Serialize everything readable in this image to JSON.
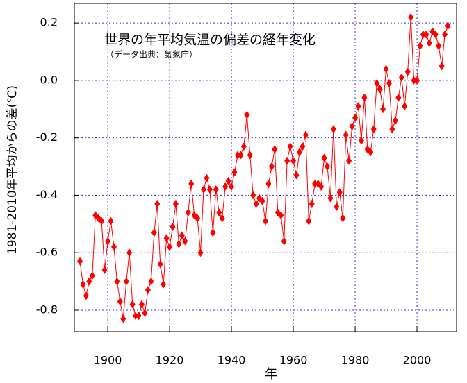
{
  "chart_data": {
    "type": "line",
    "title": "世界の年平均気温の偏差の経年変化",
    "subtitle": "（データ出典：気象庁）",
    "x_label": "年",
    "y_label": "1981-2010年平均からの差(℃)",
    "color": "#ff0000",
    "grid": true,
    "x": [
      1891,
      1892,
      1893,
      1894,
      1895,
      1896,
      1897,
      1898,
      1899,
      1900,
      1901,
      1902,
      1903,
      1904,
      1905,
      1906,
      1907,
      1908,
      1909,
      1910,
      1911,
      1912,
      1913,
      1914,
      1915,
      1916,
      1917,
      1918,
      1919,
      1920,
      1921,
      1922,
      1923,
      1924,
      1925,
      1926,
      1927,
      1928,
      1929,
      1930,
      1931,
      1932,
      1933,
      1934,
      1935,
      1936,
      1937,
      1938,
      1939,
      1940,
      1941,
      1942,
      1943,
      1944,
      1945,
      1946,
      1947,
      1948,
      1949,
      1950,
      1951,
      1952,
      1953,
      1954,
      1955,
      1956,
      1957,
      1958,
      1959,
      1960,
      1961,
      1962,
      1963,
      1964,
      1965,
      1966,
      1967,
      1968,
      1969,
      1970,
      1971,
      1972,
      1973,
      1974,
      1975,
      1976,
      1977,
      1978,
      1979,
      1980,
      1981,
      1982,
      1983,
      1984,
      1985,
      1986,
      1987,
      1988,
      1989,
      1990,
      1991,
      1992,
      1993,
      1994,
      1995,
      1996,
      1997,
      1998,
      1999,
      2000,
      2001,
      2002,
      2003,
      2004,
      2005,
      2006,
      2007,
      2008,
      2009,
      2010
    ],
    "values": [
      -0.63,
      -0.71,
      -0.75,
      -0.7,
      -0.68,
      -0.47,
      -0.48,
      -0.49,
      -0.66,
      -0.56,
      -0.49,
      -0.58,
      -0.7,
      -0.77,
      -0.83,
      -0.7,
      -0.6,
      -0.78,
      -0.82,
      -0.82,
      -0.78,
      -0.81,
      -0.73,
      -0.7,
      -0.53,
      -0.43,
      -0.64,
      -0.71,
      -0.55,
      -0.58,
      -0.51,
      -0.43,
      -0.57,
      -0.54,
      -0.56,
      -0.46,
      -0.36,
      -0.47,
      -0.48,
      -0.6,
      -0.38,
      -0.34,
      -0.38,
      -0.53,
      -0.38,
      -0.46,
      -0.48,
      -0.37,
      -0.35,
      -0.37,
      -0.32,
      -0.26,
      -0.26,
      -0.23,
      -0.12,
      -0.26,
      -0.4,
      -0.43,
      -0.41,
      -0.42,
      -0.49,
      -0.36,
      -0.3,
      -0.24,
      -0.46,
      -0.47,
      -0.56,
      -0.28,
      -0.23,
      -0.28,
      -0.33,
      -0.25,
      -0.23,
      -0.19,
      -0.49,
      -0.43,
      -0.36,
      -0.36,
      -0.37,
      -0.27,
      -0.3,
      -0.41,
      -0.17,
      -0.44,
      -0.39,
      -0.48,
      -0.19,
      -0.28,
      -0.16,
      -0.13,
      -0.09,
      -0.21,
      -0.06,
      -0.24,
      -0.25,
      -0.17,
      -0.01,
      -0.03,
      -0.1,
      0.04,
      -0.01,
      -0.17,
      -0.14,
      -0.06,
      0.01,
      -0.09,
      0.03,
      0.22,
      0.0,
      0.0,
      0.12,
      0.16,
      0.16,
      0.13,
      0.17,
      0.16,
      0.12,
      0.05,
      0.16,
      0.19
    ],
    "xlim": [
      1889.2,
      2012.8
    ],
    "xticks": [
      1900,
      1920,
      1940,
      1960,
      1980,
      2000
    ],
    "ylim": [
      -0.875,
      0.268
    ],
    "yticks": [
      0.2,
      {
        "value": 0,
        "label": "0.0"
      },
      -0.2,
      -0.4,
      -0.6,
      -0.8
    ]
  }
}
